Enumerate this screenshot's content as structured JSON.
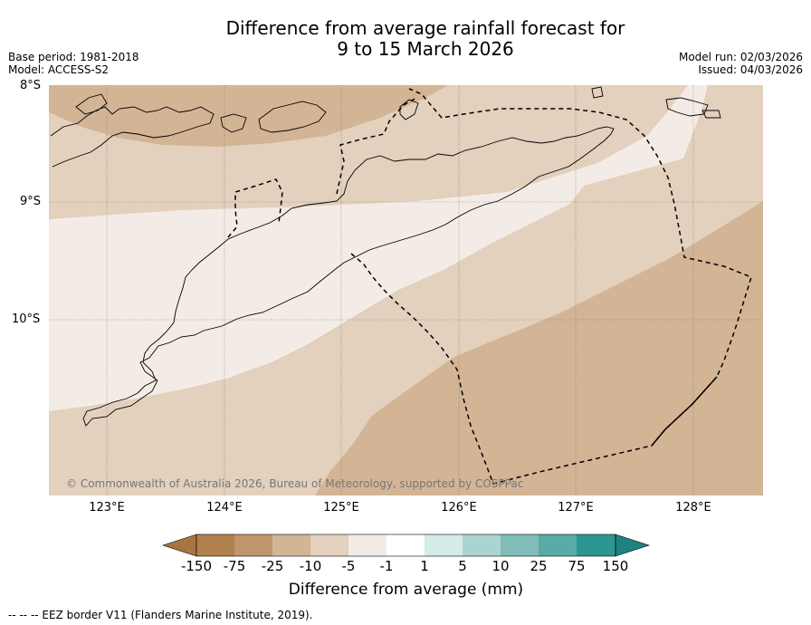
{
  "title": {
    "line1": "Difference from average rainfall forecast for",
    "line2": "9 to 15 March 2026"
  },
  "meta": {
    "base_period": "Base period: 1981-2018",
    "model": "Model: ACCESS-S2",
    "model_run": "Model run: 02/03/2026",
    "issued": "Issued: 04/03/2026"
  },
  "map": {
    "lat_labels": [
      "8°S",
      "9°S",
      "10°S"
    ],
    "lon_labels": [
      "123°E",
      "124°E",
      "125°E",
      "126°E",
      "127°E",
      "128°E"
    ],
    "copyright": "© Commonwealth of Australia 2026, Bureau of Meteorology, supported by COSPPac",
    "colors": {
      "band_minus25": "#d3b495",
      "band_minus10": "#e3d0bd",
      "band_minus5": "#f3ece6",
      "coast": "#000000",
      "grid": "#777777"
    }
  },
  "colorbar": {
    "labels": [
      "-150",
      "-75",
      "-25",
      "-10",
      "-5",
      "-1",
      "1",
      "5",
      "10",
      "25",
      "75",
      "150"
    ],
    "colors": [
      "#a87440",
      "#b0804d",
      "#c1966d",
      "#d3b495",
      "#e3d0bd",
      "#f3ece6",
      "#ffffff",
      "#d5ebe7",
      "#abd4d1",
      "#80bdb8",
      "#58aba6",
      "#2d9691",
      "#21827d"
    ],
    "title": "Difference from average (mm)"
  },
  "footnote": "--  --  -- EEZ border V11 (Flanders Marine Institute, 2019)."
}
